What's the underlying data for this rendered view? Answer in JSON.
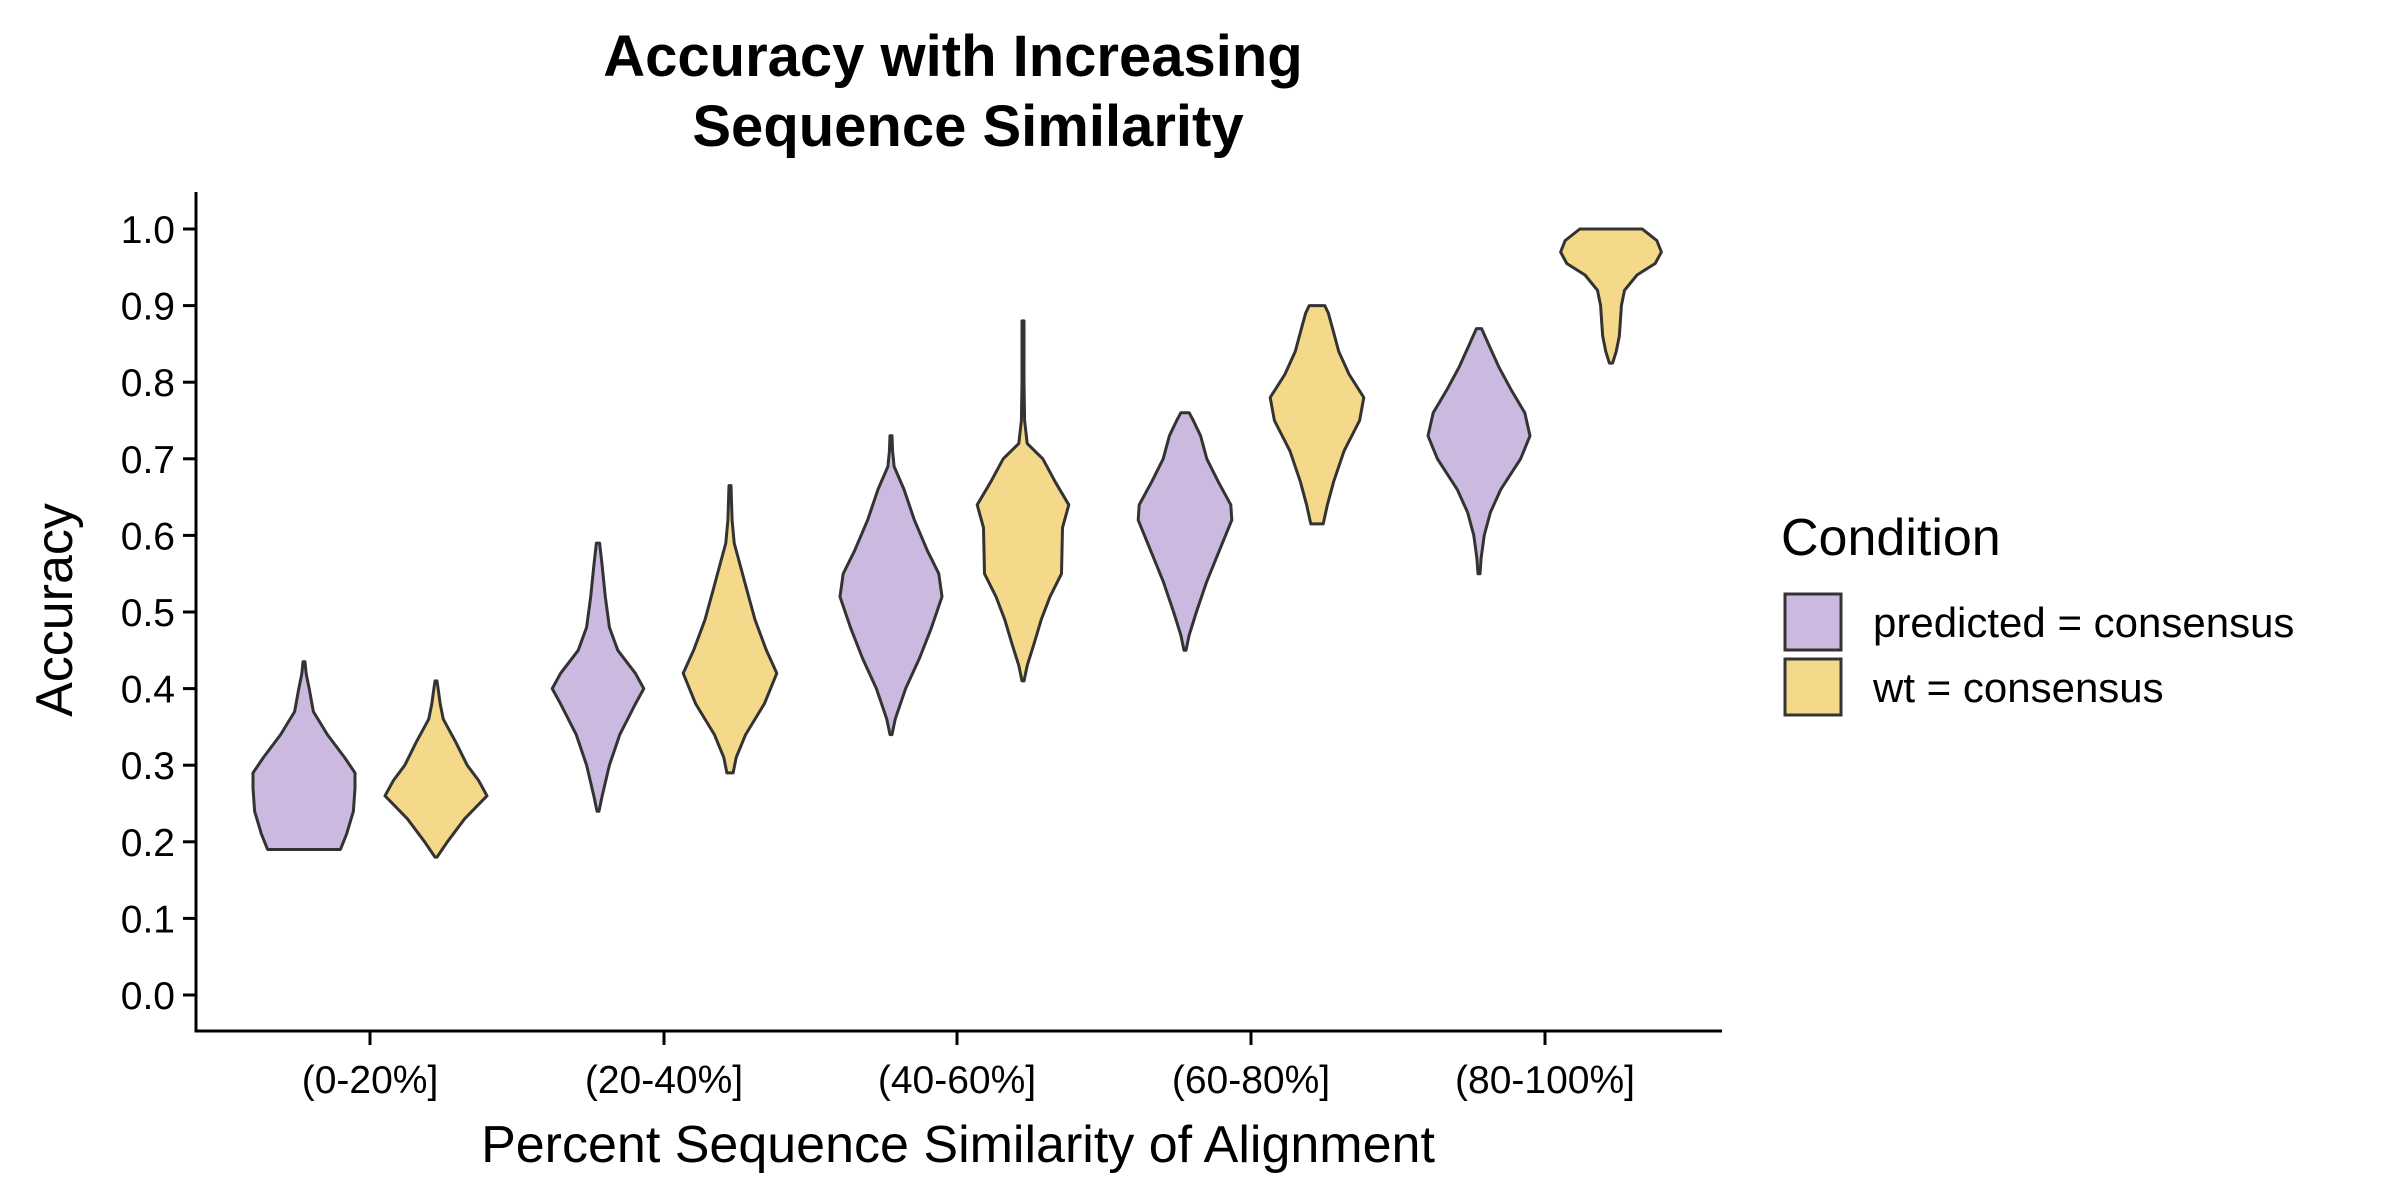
{
  "chart_data": {
    "type": "violin",
    "title_lines": [
      "Accuracy with Increasing",
      "Sequence Similarity"
    ],
    "xlabel": "Percent Sequence Similarity of Alignment",
    "ylabel": "Accuracy",
    "ylim": [
      0,
      1
    ],
    "yticks": [
      0.0,
      0.1,
      0.2,
      0.3,
      0.4,
      0.5,
      0.6,
      0.7,
      0.8,
      0.9,
      1.0
    ],
    "ytick_labels": [
      "0.0",
      "0.1",
      "0.2",
      "0.3",
      "0.4",
      "0.5",
      "0.6",
      "0.7",
      "0.8",
      "0.9",
      "1.0"
    ],
    "categories": [
      "(0-20%]",
      "(20-40%]",
      "(40-60%]",
      "(60-80%]",
      "(80-100%]"
    ],
    "grid": false,
    "legend": {
      "title": "Condition",
      "placement": "right",
      "entries": [
        {
          "label": "predicted = consensus",
          "color": "#cbb9df"
        },
        {
          "label": "wt = consensus",
          "color": "#f5d98a"
        }
      ]
    },
    "series": [
      {
        "name": "predicted = consensus",
        "color": "#cbb9df",
        "violins": [
          {
            "category": "(0-20%]",
            "min": 0.19,
            "max": 0.435,
            "profile": [
              [
                0.19,
                0.7
              ],
              [
                0.21,
                0.82
              ],
              [
                0.24,
                0.95
              ],
              [
                0.27,
                0.98
              ],
              [
                0.29,
                0.98
              ],
              [
                0.31,
                0.78
              ],
              [
                0.34,
                0.45
              ],
              [
                0.37,
                0.18
              ],
              [
                0.4,
                0.1
              ],
              [
                0.42,
                0.04
              ],
              [
                0.435,
                0.02
              ]
            ]
          },
          {
            "category": "(20-40%]",
            "min": 0.24,
            "max": 0.59,
            "profile": [
              [
                0.24,
                0.02
              ],
              [
                0.26,
                0.08
              ],
              [
                0.3,
                0.22
              ],
              [
                0.34,
                0.42
              ],
              [
                0.38,
                0.72
              ],
              [
                0.4,
                0.88
              ],
              [
                0.42,
                0.72
              ],
              [
                0.45,
                0.38
              ],
              [
                0.48,
                0.22
              ],
              [
                0.52,
                0.14
              ],
              [
                0.56,
                0.08
              ],
              [
                0.59,
                0.03
              ]
            ]
          },
          {
            "category": "(40-60%]",
            "min": 0.34,
            "max": 0.73,
            "profile": [
              [
                0.34,
                0.02
              ],
              [
                0.36,
                0.08
              ],
              [
                0.4,
                0.28
              ],
              [
                0.44,
                0.55
              ],
              [
                0.48,
                0.78
              ],
              [
                0.52,
                0.98
              ],
              [
                0.55,
                0.92
              ],
              [
                0.58,
                0.7
              ],
              [
                0.62,
                0.45
              ],
              [
                0.66,
                0.25
              ],
              [
                0.69,
                0.06
              ],
              [
                0.71,
                0.03
              ],
              [
                0.73,
                0.02
              ]
            ]
          },
          {
            "category": "(60-80%]",
            "min": 0.45,
            "max": 0.76,
            "profile": [
              [
                0.45,
                0.02
              ],
              [
                0.47,
                0.08
              ],
              [
                0.5,
                0.22
              ],
              [
                0.54,
                0.42
              ],
              [
                0.58,
                0.66
              ],
              [
                0.62,
                0.9
              ],
              [
                0.64,
                0.88
              ],
              [
                0.67,
                0.64
              ],
              [
                0.7,
                0.42
              ],
              [
                0.73,
                0.3
              ],
              [
                0.75,
                0.16
              ],
              [
                0.76,
                0.08
              ]
            ]
          },
          {
            "category": "(80-100%]",
            "min": 0.55,
            "max": 0.87,
            "profile": [
              [
                0.55,
                0.02
              ],
              [
                0.57,
                0.04
              ],
              [
                0.6,
                0.1
              ],
              [
                0.63,
                0.22
              ],
              [
                0.66,
                0.42
              ],
              [
                0.7,
                0.8
              ],
              [
                0.73,
                0.98
              ],
              [
                0.76,
                0.88
              ],
              [
                0.79,
                0.62
              ],
              [
                0.82,
                0.38
              ],
              [
                0.85,
                0.18
              ],
              [
                0.87,
                0.05
              ]
            ]
          }
        ]
      },
      {
        "name": "wt = consensus",
        "color": "#f5d98a",
        "violins": [
          {
            "category": "(0-20%]",
            "min": 0.18,
            "max": 0.41,
            "profile": [
              [
                0.18,
                0.02
              ],
              [
                0.2,
                0.22
              ],
              [
                0.23,
                0.55
              ],
              [
                0.26,
                0.98
              ],
              [
                0.28,
                0.82
              ],
              [
                0.3,
                0.6
              ],
              [
                0.33,
                0.38
              ],
              [
                0.36,
                0.14
              ],
              [
                0.38,
                0.08
              ],
              [
                0.4,
                0.04
              ],
              [
                0.41,
                0.02
              ]
            ]
          },
          {
            "category": "(20-40%]",
            "min": 0.29,
            "max": 0.665,
            "profile": [
              [
                0.29,
                0.06
              ],
              [
                0.31,
                0.12
              ],
              [
                0.34,
                0.3
              ],
              [
                0.38,
                0.66
              ],
              [
                0.42,
                0.9
              ],
              [
                0.45,
                0.7
              ],
              [
                0.49,
                0.48
              ],
              [
                0.53,
                0.32
              ],
              [
                0.56,
                0.2
              ],
              [
                0.59,
                0.08
              ],
              [
                0.62,
                0.04
              ],
              [
                0.665,
                0.02
              ]
            ]
          },
          {
            "category": "(40-60%]",
            "min": 0.41,
            "max": 0.88,
            "profile": [
              [
                0.41,
                0.02
              ],
              [
                0.43,
                0.08
              ],
              [
                0.46,
                0.22
              ],
              [
                0.49,
                0.35
              ],
              [
                0.52,
                0.52
              ],
              [
                0.55,
                0.74
              ],
              [
                0.58,
                0.75
              ],
              [
                0.61,
                0.76
              ],
              [
                0.64,
                0.88
              ],
              [
                0.67,
                0.62
              ],
              [
                0.7,
                0.38
              ],
              [
                0.72,
                0.08
              ],
              [
                0.75,
                0.03
              ],
              [
                0.8,
                0.02
              ],
              [
                0.88,
                0.02
              ]
            ]
          },
          {
            "category": "(60-80%]",
            "min": 0.615,
            "max": 0.9,
            "profile": [
              [
                0.615,
                0.12
              ],
              [
                0.64,
                0.2
              ],
              [
                0.67,
                0.32
              ],
              [
                0.71,
                0.52
              ],
              [
                0.75,
                0.82
              ],
              [
                0.78,
                0.9
              ],
              [
                0.81,
                0.62
              ],
              [
                0.84,
                0.42
              ],
              [
                0.87,
                0.3
              ],
              [
                0.89,
                0.22
              ],
              [
                0.9,
                0.15
              ]
            ]
          },
          {
            "category": "(80-100%]",
            "min": 0.825,
            "max": 1.0,
            "profile": [
              [
                0.825,
                0.03
              ],
              [
                0.84,
                0.1
              ],
              [
                0.86,
                0.16
              ],
              [
                0.88,
                0.18
              ],
              [
                0.9,
                0.2
              ],
              [
                0.92,
                0.26
              ],
              [
                0.94,
                0.5
              ],
              [
                0.955,
                0.85
              ],
              [
                0.97,
                0.97
              ],
              [
                0.985,
                0.88
              ],
              [
                1.0,
                0.6
              ]
            ]
          }
        ]
      }
    ]
  }
}
